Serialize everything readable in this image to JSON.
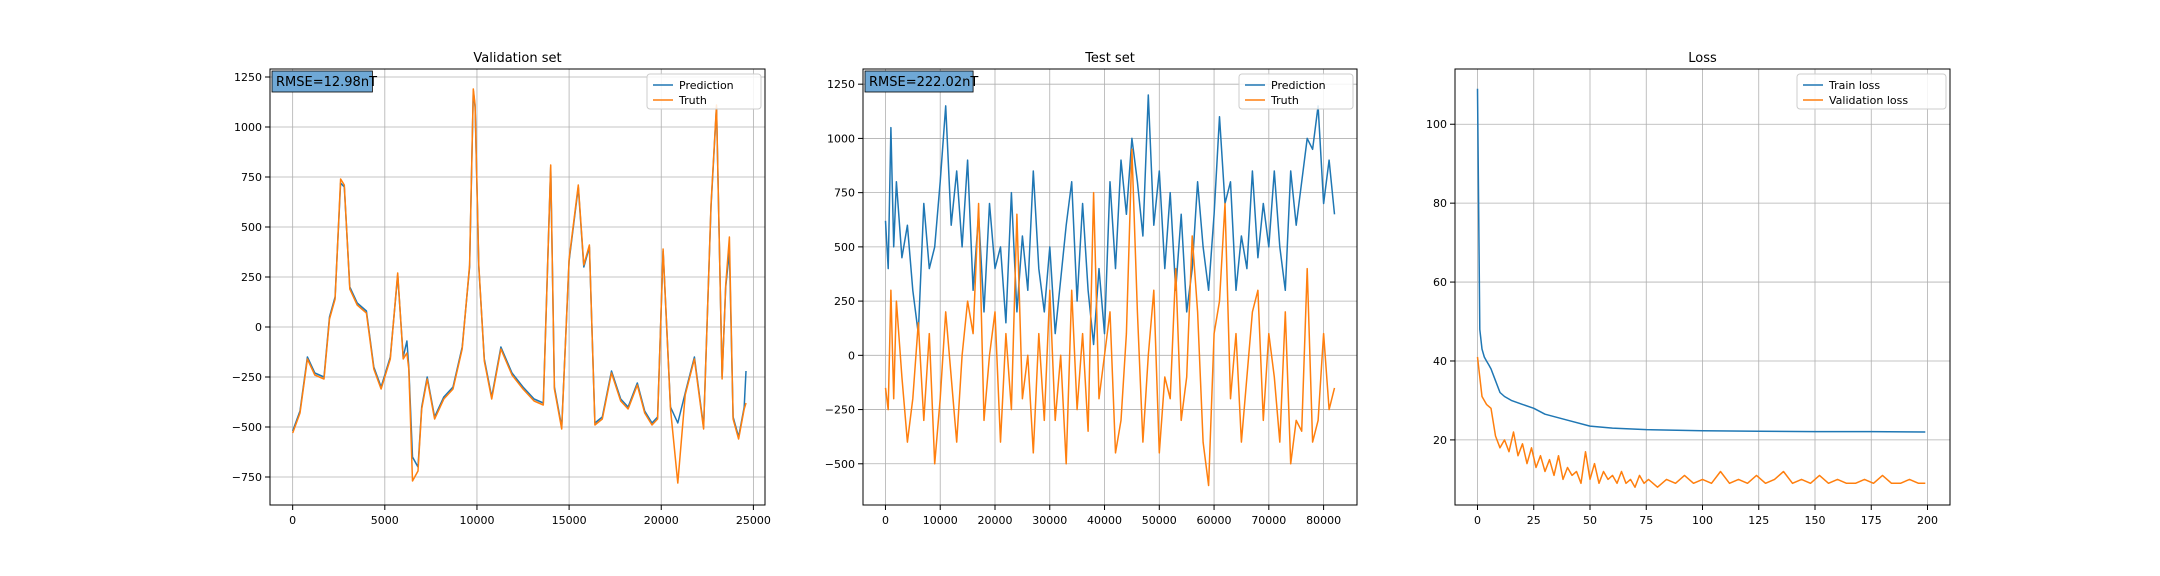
{
  "colors": {
    "prediction": "#1f77b4",
    "truth": "#ff7f0e",
    "grid": "#b0b0b0",
    "annotation_box": "#6fa8d6"
  },
  "chart_data": [
    {
      "type": "line",
      "title": "Validation set",
      "xlim": [
        -1230,
        25630
      ],
      "ylim": [
        -890,
        1290
      ],
      "xticks": [
        0,
        5000,
        10000,
        15000,
        20000,
        25000
      ],
      "xtick_labels": [
        "0",
        "5000",
        "10000",
        "15000",
        "20000",
        "25000"
      ],
      "yticks": [
        -750,
        -500,
        -250,
        0,
        250,
        500,
        750,
        1000,
        1250
      ],
      "ytick_labels": [
        "−750",
        "−500",
        "−250",
        "0",
        "250",
        "500",
        "750",
        "1000",
        "1250"
      ],
      "grid": true,
      "legend_position": "upper right",
      "annotation": "RMSE=12.98nT",
      "series": [
        {
          "name": "Prediction",
          "color": "#1f77b4",
          "x": [
            0,
            400,
            800,
            1200,
            1700,
            2000,
            2300,
            2600,
            2800,
            3100,
            3500,
            4000,
            4400,
            4800,
            5300,
            5700,
            6000,
            6200,
            6300,
            6500,
            6800,
            7000,
            7300,
            7700,
            8200,
            8700,
            9200,
            9600,
            9800,
            9900,
            10100,
            10400,
            10800,
            11300,
            11900,
            12500,
            13100,
            13600,
            14000,
            14200,
            14600,
            15000,
            15500,
            15800,
            16100,
            16400,
            16800,
            17300,
            17800,
            18200,
            18700,
            19100,
            19500,
            19800,
            20100,
            20500,
            20900,
            21300,
            21800,
            22300,
            22700,
            23000,
            23300,
            23500,
            23700,
            23900,
            24200,
            24500,
            24600
          ],
          "values": [
            -520,
            -420,
            -150,
            -230,
            -250,
            50,
            150,
            720,
            700,
            200,
            120,
            80,
            -200,
            -300,
            -150,
            260,
            -150,
            -70,
            -200,
            -650,
            -700,
            -400,
            -250,
            -450,
            -350,
            -300,
            -100,
            300,
            1180,
            1100,
            300,
            -160,
            -350,
            -100,
            -230,
            -300,
            -360,
            -380,
            800,
            -300,
            -500,
            330,
            700,
            300,
            400,
            -480,
            -450,
            -220,
            -360,
            -400,
            -280,
            -420,
            -480,
            -450,
            380,
            -400,
            -480,
            -330,
            -150,
            -500,
            600,
            1100,
            -250,
            200,
            380,
            -450,
            -550,
            -400,
            -220
          ]
        },
        {
          "name": "Truth",
          "color": "#ff7f0e",
          "x": [
            0,
            400,
            800,
            1200,
            1700,
            2000,
            2300,
            2600,
            2800,
            3100,
            3500,
            4000,
            4400,
            4800,
            5300,
            5700,
            6000,
            6200,
            6300,
            6500,
            6800,
            7000,
            7300,
            7700,
            8200,
            8700,
            9200,
            9600,
            9800,
            9900,
            10100,
            10400,
            10800,
            11300,
            11900,
            12500,
            13100,
            13600,
            14000,
            14200,
            14600,
            15000,
            15500,
            15800,
            16100,
            16400,
            16800,
            17300,
            17800,
            18200,
            18700,
            19100,
            19500,
            19800,
            20100,
            20500,
            20900,
            21300,
            21800,
            22300,
            22700,
            23000,
            23300,
            23500,
            23700,
            23900,
            24200,
            24500,
            24600
          ],
          "values": [
            -530,
            -430,
            -160,
            -240,
            -260,
            40,
            140,
            740,
            710,
            190,
            110,
            70,
            -210,
            -310,
            -160,
            270,
            -160,
            -130,
            -210,
            -770,
            -720,
            -410,
            -260,
            -460,
            -360,
            -310,
            -110,
            310,
            1190,
            1110,
            310,
            -170,
            -360,
            -110,
            -240,
            -310,
            -370,
            -390,
            810,
            -310,
            -510,
            340,
            710,
            310,
            410,
            -490,
            -460,
            -230,
            -370,
            -410,
            -290,
            -430,
            -490,
            -460,
            390,
            -410,
            -780,
            -340,
            -160,
            -510,
            610,
            1110,
            -260,
            210,
            450,
            -460,
            -560,
            -410,
            -380
          ]
        }
      ]
    },
    {
      "type": "line",
      "title": "Test set",
      "xlim": [
        -4100,
        86100
      ],
      "ylim": [
        -690,
        1320
      ],
      "xticks": [
        0,
        10000,
        20000,
        30000,
        40000,
        50000,
        60000,
        70000,
        80000
      ],
      "xtick_labels": [
        "0",
        "10000",
        "20000",
        "30000",
        "40000",
        "50000",
        "60000",
        "70000",
        "80000"
      ],
      "yticks": [
        -500,
        -250,
        0,
        250,
        500,
        750,
        1000,
        1250
      ],
      "ytick_labels": [
        "−500",
        "−250",
        "0",
        "250",
        "500",
        "750",
        "1000",
        "1250"
      ],
      "grid": true,
      "legend_position": "upper right",
      "annotation": "RMSE=222.02nT",
      "series": [
        {
          "name": "Prediction",
          "color": "#1f77b4",
          "x": [
            0,
            500,
            1000,
            1500,
            2000,
            3000,
            4000,
            5000,
            6000,
            7000,
            8000,
            9000,
            10000,
            11000,
            12000,
            13000,
            14000,
            15000,
            16000,
            17000,
            18000,
            19000,
            20000,
            21000,
            22000,
            23000,
            24000,
            25000,
            26000,
            27000,
            28000,
            29000,
            30000,
            31000,
            32000,
            33000,
            34000,
            35000,
            36000,
            37000,
            38000,
            39000,
            40000,
            41000,
            42000,
            43000,
            44000,
            45000,
            46000,
            47000,
            48000,
            49000,
            50000,
            51000,
            52000,
            53000,
            54000,
            55000,
            56000,
            57000,
            58000,
            59000,
            60000,
            61000,
            62000,
            63000,
            64000,
            65000,
            66000,
            67000,
            68000,
            69000,
            70000,
            71000,
            72000,
            73000,
            74000,
            75000,
            76000,
            77000,
            78000,
            79000,
            80000,
            81000,
            82000
          ],
          "values": [
            620,
            400,
            1050,
            500,
            800,
            450,
            600,
            300,
            100,
            700,
            400,
            500,
            800,
            1150,
            600,
            850,
            500,
            900,
            300,
            650,
            200,
            700,
            400,
            500,
            150,
            750,
            200,
            550,
            300,
            850,
            400,
            200,
            500,
            100,
            350,
            600,
            800,
            250,
            700,
            300,
            50,
            400,
            100,
            800,
            400,
            900,
            650,
            1000,
            800,
            550,
            1200,
            600,
            850,
            400,
            750,
            300,
            650,
            200,
            400,
            800,
            500,
            300,
            650,
            1100,
            700,
            800,
            300,
            550,
            400,
            850,
            450,
            700,
            500,
            850,
            500,
            300,
            850,
            600,
            800,
            1000,
            950,
            1150,
            700,
            900,
            650
          ]
        },
        {
          "name": "Truth",
          "color": "#ff7f0e",
          "x": [
            0,
            500,
            1000,
            1500,
            2000,
            3000,
            4000,
            5000,
            6000,
            7000,
            8000,
            9000,
            10000,
            11000,
            12000,
            13000,
            14000,
            15000,
            16000,
            17000,
            18000,
            19000,
            20000,
            21000,
            22000,
            23000,
            24000,
            25000,
            26000,
            27000,
            28000,
            29000,
            30000,
            31000,
            32000,
            33000,
            34000,
            35000,
            36000,
            37000,
            38000,
            39000,
            40000,
            41000,
            42000,
            43000,
            44000,
            45000,
            46000,
            47000,
            48000,
            49000,
            50000,
            51000,
            52000,
            53000,
            54000,
            55000,
            56000,
            57000,
            58000,
            59000,
            60000,
            61000,
            62000,
            63000,
            64000,
            65000,
            66000,
            67000,
            68000,
            69000,
            70000,
            71000,
            72000,
            73000,
            74000,
            75000,
            76000,
            77000,
            78000,
            79000,
            80000,
            81000,
            82000
          ],
          "values": [
            -150,
            -250,
            300,
            -200,
            250,
            -100,
            -400,
            -200,
            150,
            -300,
            100,
            -500,
            -200,
            200,
            -100,
            -400,
            0,
            250,
            100,
            700,
            -300,
            0,
            200,
            -400,
            100,
            -250,
            650,
            -200,
            0,
            -450,
            100,
            -300,
            300,
            -300,
            0,
            -500,
            300,
            -250,
            100,
            -350,
            750,
            -200,
            0,
            200,
            -450,
            -300,
            100,
            950,
            200,
            -400,
            0,
            300,
            -450,
            -100,
            -200,
            400,
            -300,
            -100,
            550,
            200,
            -400,
            -600,
            100,
            250,
            700,
            -200,
            100,
            -400,
            -100,
            200,
            300,
            -300,
            100,
            -100,
            -400,
            200,
            -500,
            -300,
            -350,
            400,
            -400,
            -300,
            100,
            -250,
            -150
          ]
        }
      ]
    },
    {
      "type": "line",
      "title": "Loss",
      "xlim": [
        -10,
        210
      ],
      "ylim": [
        3.5,
        114
      ],
      "xticks": [
        0,
        25,
        50,
        75,
        100,
        125,
        150,
        175,
        200
      ],
      "xtick_labels": [
        "0",
        "25",
        "50",
        "75",
        "100",
        "125",
        "150",
        "175",
        "200"
      ],
      "yticks": [
        20,
        40,
        60,
        80,
        100
      ],
      "ytick_labels": [
        "20",
        "40",
        "60",
        "80",
        "100"
      ],
      "grid": true,
      "legend_position": "upper right",
      "series": [
        {
          "name": "Train loss",
          "color": "#1f77b4",
          "x": [
            0,
            1,
            2,
            3,
            4,
            5,
            6,
            8,
            10,
            12,
            15,
            20,
            25,
            30,
            40,
            50,
            60,
            75,
            100,
            125,
            150,
            175,
            199
          ],
          "values": [
            109,
            48,
            43,
            41,
            40,
            39,
            38,
            35,
            32,
            31,
            30,
            29,
            28,
            26.5,
            25,
            23.5,
            23,
            22.6,
            22.3,
            22.2,
            22.1,
            22.1,
            22
          ]
        },
        {
          "name": "Validation loss",
          "color": "#ff7f0e",
          "x": [
            0,
            2,
            4,
            6,
            8,
            10,
            12,
            14,
            16,
            18,
            20,
            22,
            24,
            26,
            28,
            30,
            32,
            34,
            36,
            38,
            40,
            42,
            44,
            46,
            48,
            50,
            52,
            54,
            56,
            58,
            60,
            62,
            64,
            66,
            68,
            70,
            72,
            74,
            76,
            78,
            80,
            84,
            88,
            92,
            96,
            100,
            104,
            108,
            112,
            116,
            120,
            124,
            128,
            132,
            136,
            140,
            144,
            148,
            152,
            156,
            160,
            164,
            168,
            172,
            176,
            180,
            184,
            188,
            192,
            196,
            199
          ],
          "values": [
            41,
            31,
            29,
            28,
            21,
            18,
            20,
            17,
            22,
            16,
            19,
            14,
            18,
            13,
            16,
            12,
            15,
            11,
            16,
            10,
            13,
            11,
            12,
            9,
            17,
            10,
            14,
            9,
            12,
            10,
            11,
            9,
            12,
            9,
            10,
            8,
            11,
            9,
            10,
            9,
            8,
            10,
            9,
            11,
            9,
            10,
            9,
            12,
            9,
            10,
            9,
            11,
            9,
            10,
            12,
            9,
            10,
            9,
            11,
            9,
            10,
            9,
            9,
            10,
            9,
            11,
            9,
            9,
            10,
            9,
            9
          ]
        }
      ]
    }
  ]
}
